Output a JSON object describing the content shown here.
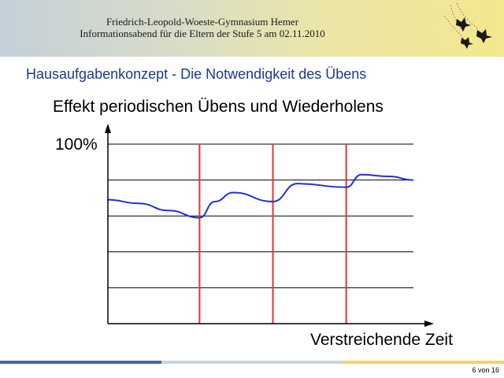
{
  "header": {
    "line1": "Friedrich-Leopold-Woeste-Gymnasium Hemer",
    "line2": "Informationsabend für die Eltern der Stufe 5 am 02.11.2010",
    "logo_icon": "flying-birds-logo-icon"
  },
  "slide": {
    "subtitle": "Hausaufgabenkonzept - Die Notwendigkeit des Übens",
    "page": "6 von 16"
  },
  "chart_data": {
    "type": "line",
    "title": "Effekt periodischen Übens und Wiederholens",
    "xlabel": "Verstreichende Zeit",
    "ylabel": "",
    "ymax_label": "100%",
    "ylim": [
      0,
      100
    ],
    "xlim": [
      0,
      10
    ],
    "grid": "horizontal",
    "y_gridlines": [
      20,
      40,
      60,
      80,
      100
    ],
    "repetition_markers_x": [
      3,
      5.4,
      7.8
    ],
    "series": [
      {
        "color": "#1f2fd8",
        "points": [
          [
            0,
            69
          ],
          [
            1,
            67
          ],
          [
            2,
            63
          ],
          [
            3,
            59
          ],
          [
            3.5,
            68
          ],
          [
            4.1,
            73
          ],
          [
            5.4,
            68
          ],
          [
            6.2,
            78
          ],
          [
            7.8,
            76
          ],
          [
            8.3,
            83
          ],
          [
            9.2,
            82
          ],
          [
            10,
            80
          ]
        ]
      }
    ],
    "marker_color": "#e8352c"
  },
  "colors": {
    "subtitle": "#1a3a8c",
    "curve": "#1f2fd8",
    "marker": "#e8352c",
    "grid": "#000000"
  }
}
